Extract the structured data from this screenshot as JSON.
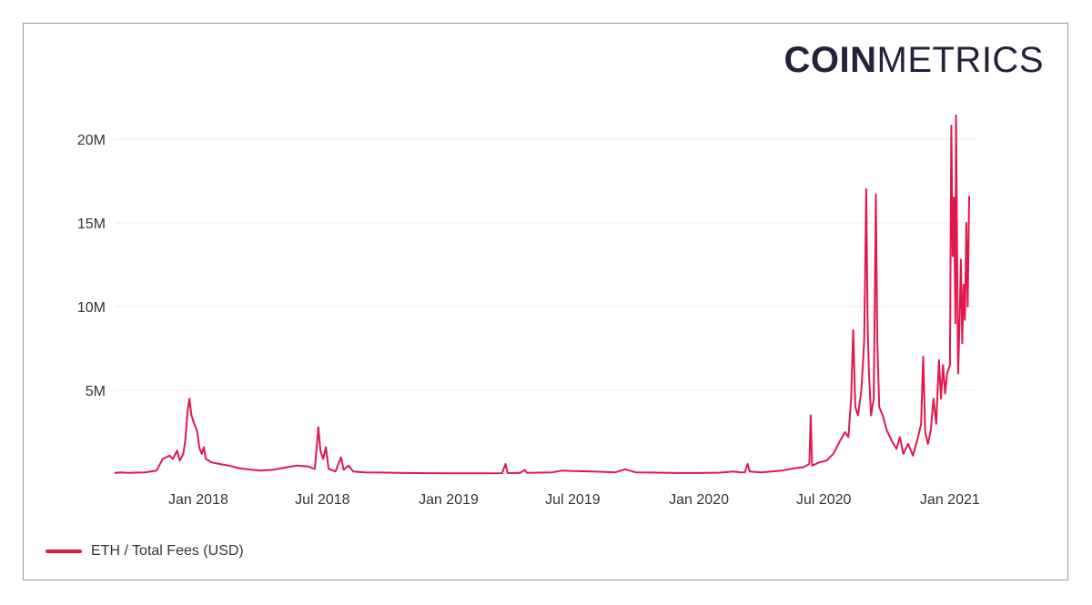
{
  "brand": {
    "bold": "COIN",
    "light": "METRICS"
  },
  "chart_data": {
    "type": "line",
    "title": "",
    "xlabel": "",
    "ylabel": "",
    "x_range": [
      "2017-09-01",
      "2021-02-10"
    ],
    "ylim": [
      0,
      22000000
    ],
    "grid": {
      "horizontal": true,
      "vertical": false
    },
    "legend_position": "bottom-left",
    "y_ticks": [
      {
        "value": 5000000,
        "label": "5M"
      },
      {
        "value": 10000000,
        "label": "10M"
      },
      {
        "value": 15000000,
        "label": "15M"
      },
      {
        "value": 20000000,
        "label": "20M"
      }
    ],
    "x_ticks": [
      {
        "date": "2018-01-01",
        "label": "Jan 2018"
      },
      {
        "date": "2018-07-01",
        "label": "Jul 2018"
      },
      {
        "date": "2019-01-01",
        "label": "Jan 2019"
      },
      {
        "date": "2019-07-01",
        "label": "Jul 2019"
      },
      {
        "date": "2020-01-01",
        "label": "Jan 2020"
      },
      {
        "date": "2020-07-01",
        "label": "Jul 2020"
      },
      {
        "date": "2021-01-01",
        "label": "Jan 2021"
      }
    ],
    "series": [
      {
        "name": "ETH / Total Fees (USD)",
        "color": "#e0184e",
        "points": [
          [
            "2017-09-01",
            60000
          ],
          [
            "2017-09-10",
            90000
          ],
          [
            "2017-09-20",
            70000
          ],
          [
            "2017-10-01",
            80000
          ],
          [
            "2017-10-15",
            100000
          ],
          [
            "2017-11-01",
            200000
          ],
          [
            "2017-11-10",
            900000
          ],
          [
            "2017-11-20",
            1100000
          ],
          [
            "2017-11-25",
            900000
          ],
          [
            "2017-12-01",
            1400000
          ],
          [
            "2017-12-05",
            800000
          ],
          [
            "2017-12-10",
            1200000
          ],
          [
            "2017-12-13",
            2000000
          ],
          [
            "2017-12-16",
            3600000
          ],
          [
            "2017-12-19",
            4500000
          ],
          [
            "2017-12-22",
            3500000
          ],
          [
            "2017-12-26",
            3000000
          ],
          [
            "2017-12-30",
            2600000
          ],
          [
            "2018-01-03",
            1500000
          ],
          [
            "2018-01-06",
            1200000
          ],
          [
            "2018-01-09",
            1600000
          ],
          [
            "2018-01-12",
            900000
          ],
          [
            "2018-01-20",
            700000
          ],
          [
            "2018-02-01",
            600000
          ],
          [
            "2018-02-15",
            500000
          ],
          [
            "2018-03-01",
            350000
          ],
          [
            "2018-03-20",
            250000
          ],
          [
            "2018-04-01",
            200000
          ],
          [
            "2018-04-20",
            250000
          ],
          [
            "2018-05-10",
            400000
          ],
          [
            "2018-05-25",
            500000
          ],
          [
            "2018-06-10",
            450000
          ],
          [
            "2018-06-20",
            300000
          ],
          [
            "2018-06-25",
            2800000
          ],
          [
            "2018-06-28",
            1400000
          ],
          [
            "2018-07-02",
            900000
          ],
          [
            "2018-07-06",
            1600000
          ],
          [
            "2018-07-10",
            300000
          ],
          [
            "2018-07-20",
            150000
          ],
          [
            "2018-07-28",
            1000000
          ],
          [
            "2018-08-01",
            250000
          ],
          [
            "2018-08-08",
            500000
          ],
          [
            "2018-08-15",
            150000
          ],
          [
            "2018-09-01",
            100000
          ],
          [
            "2018-10-01",
            80000
          ],
          [
            "2018-11-01",
            60000
          ],
          [
            "2018-12-01",
            50000
          ],
          [
            "2019-01-01",
            40000
          ],
          [
            "2019-02-01",
            40000
          ],
          [
            "2019-03-01",
            40000
          ],
          [
            "2019-03-20",
            50000
          ],
          [
            "2019-03-25",
            600000
          ],
          [
            "2019-03-28",
            60000
          ],
          [
            "2019-04-15",
            60000
          ],
          [
            "2019-04-22",
            250000
          ],
          [
            "2019-04-25",
            70000
          ],
          [
            "2019-06-01",
            100000
          ],
          [
            "2019-06-15",
            200000
          ],
          [
            "2019-07-01",
            180000
          ],
          [
            "2019-08-01",
            150000
          ],
          [
            "2019-09-01",
            100000
          ],
          [
            "2019-09-15",
            280000
          ],
          [
            "2019-10-01",
            100000
          ],
          [
            "2019-11-01",
            80000
          ],
          [
            "2019-12-01",
            60000
          ],
          [
            "2020-01-01",
            60000
          ],
          [
            "2020-02-01",
            80000
          ],
          [
            "2020-02-20",
            150000
          ],
          [
            "2020-03-01",
            100000
          ],
          [
            "2020-03-08",
            100000
          ],
          [
            "2020-03-12",
            600000
          ],
          [
            "2020-03-15",
            150000
          ],
          [
            "2020-04-01",
            100000
          ],
          [
            "2020-05-01",
            200000
          ],
          [
            "2020-05-20",
            350000
          ],
          [
            "2020-06-01",
            400000
          ],
          [
            "2020-06-10",
            600000
          ],
          [
            "2020-06-12",
            3500000
          ],
          [
            "2020-06-14",
            500000
          ],
          [
            "2020-06-25",
            700000
          ],
          [
            "2020-07-05",
            800000
          ],
          [
            "2020-07-15",
            1200000
          ],
          [
            "2020-07-25",
            2000000
          ],
          [
            "2020-08-01",
            2500000
          ],
          [
            "2020-08-06",
            2200000
          ],
          [
            "2020-08-10",
            4500000
          ],
          [
            "2020-08-13",
            8600000
          ],
          [
            "2020-08-16",
            4000000
          ],
          [
            "2020-08-20",
            3500000
          ],
          [
            "2020-08-25",
            5000000
          ],
          [
            "2020-08-29",
            8000000
          ],
          [
            "2020-09-01",
            17000000
          ],
          [
            "2020-09-03",
            9000000
          ],
          [
            "2020-09-05",
            6000000
          ],
          [
            "2020-09-08",
            3500000
          ],
          [
            "2020-09-12",
            4500000
          ],
          [
            "2020-09-15",
            16700000
          ],
          [
            "2020-09-17",
            8000000
          ],
          [
            "2020-09-20",
            4000000
          ],
          [
            "2020-09-25",
            3500000
          ],
          [
            "2020-10-01",
            2600000
          ],
          [
            "2020-10-08",
            2000000
          ],
          [
            "2020-10-15",
            1500000
          ],
          [
            "2020-10-20",
            2200000
          ],
          [
            "2020-10-25",
            1200000
          ],
          [
            "2020-11-01",
            1800000
          ],
          [
            "2020-11-08",
            1100000
          ],
          [
            "2020-11-15",
            2100000
          ],
          [
            "2020-11-20",
            3000000
          ],
          [
            "2020-11-23",
            7000000
          ],
          [
            "2020-11-26",
            2500000
          ],
          [
            "2020-11-30",
            1800000
          ],
          [
            "2020-12-04",
            2600000
          ],
          [
            "2020-12-08",
            4500000
          ],
          [
            "2020-12-12",
            3000000
          ],
          [
            "2020-12-16",
            6800000
          ],
          [
            "2020-12-19",
            4500000
          ],
          [
            "2020-12-22",
            6500000
          ],
          [
            "2020-12-25",
            4800000
          ],
          [
            "2020-12-28",
            6000000
          ],
          [
            "2021-01-01",
            6500000
          ],
          [
            "2021-01-03",
            20800000
          ],
          [
            "2021-01-05",
            13000000
          ],
          [
            "2021-01-07",
            16500000
          ],
          [
            "2021-01-09",
            9000000
          ],
          [
            "2021-01-10",
            21400000
          ],
          [
            "2021-01-12",
            11000000
          ],
          [
            "2021-01-13",
            6000000
          ],
          [
            "2021-01-15",
            9000000
          ],
          [
            "2021-01-17",
            12800000
          ],
          [
            "2021-01-19",
            7800000
          ],
          [
            "2021-01-21",
            11300000
          ],
          [
            "2021-01-23",
            9200000
          ],
          [
            "2021-01-25",
            15000000
          ],
          [
            "2021-01-27",
            10000000
          ],
          [
            "2021-01-29",
            16600000
          ]
        ]
      }
    ]
  }
}
